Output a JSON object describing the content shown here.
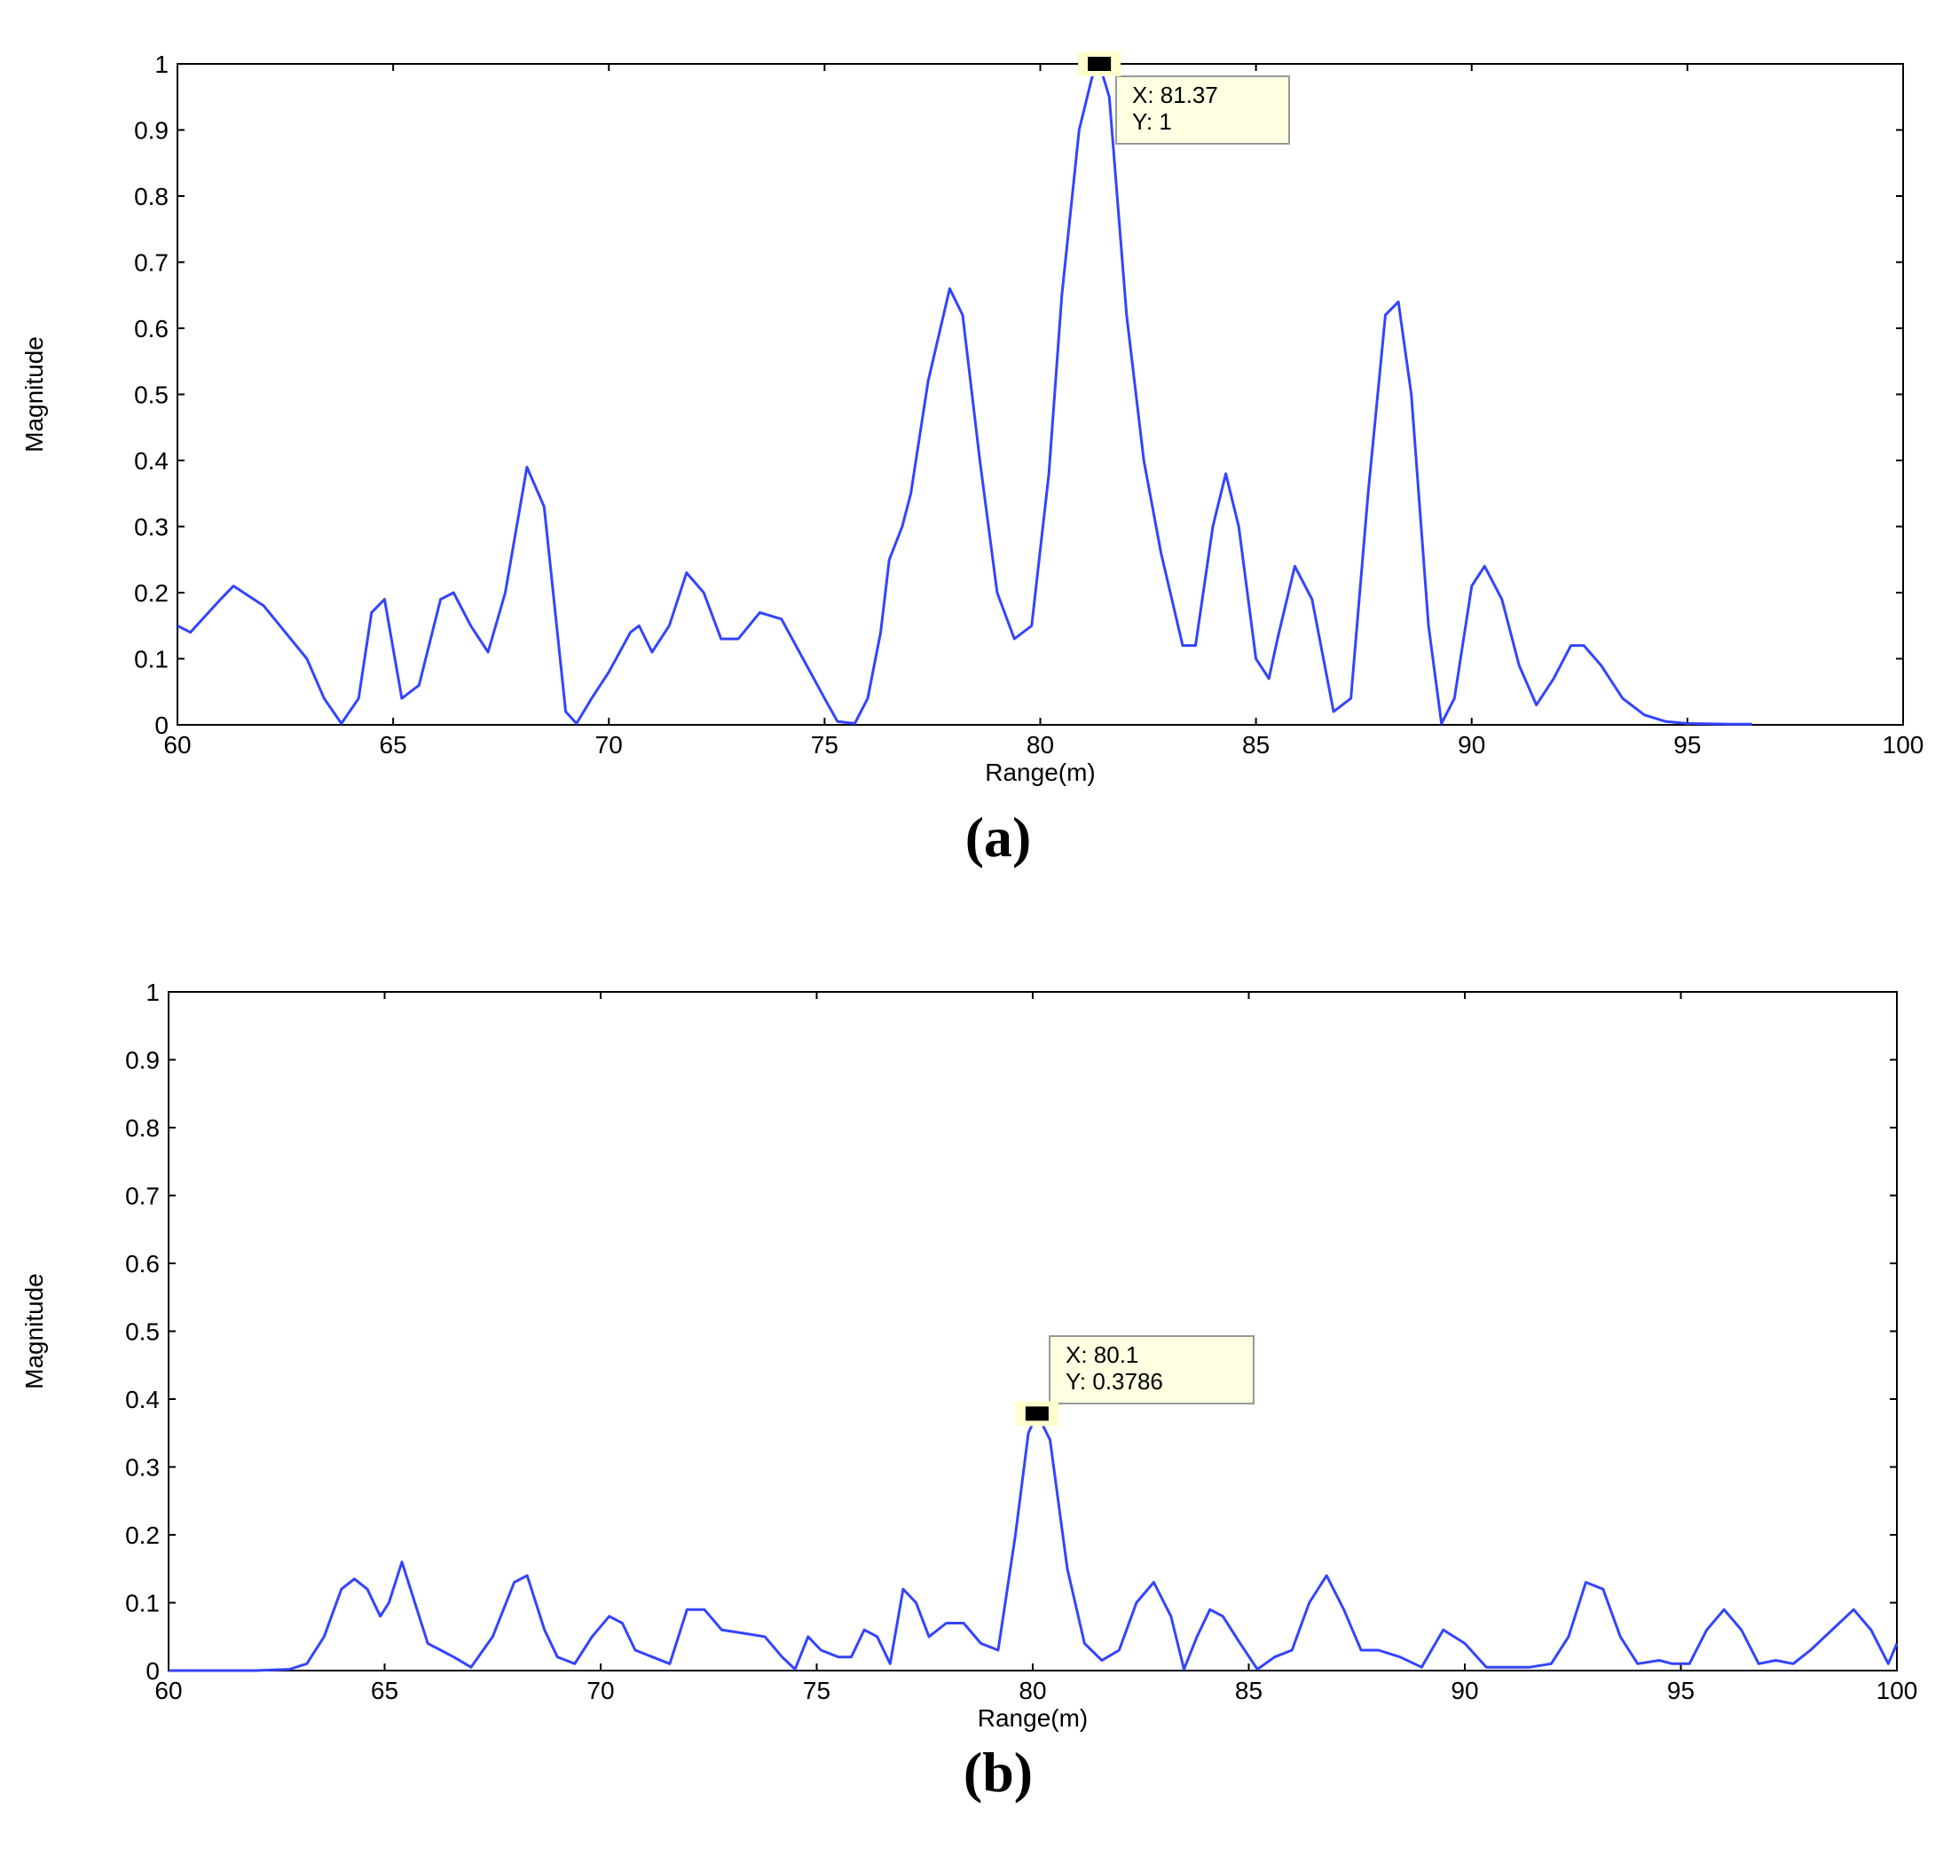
{
  "chart_data": [
    {
      "type": "line",
      "panel_label": "(a)",
      "xlabel": "Range(m)",
      "ylabel": "Magnitude",
      "xlim": [
        60,
        100
      ],
      "ylim": [
        0,
        1
      ],
      "xticks": [
        60,
        65,
        70,
        75,
        80,
        85,
        90,
        95,
        100
      ],
      "yticks": [
        0,
        0.1,
        0.2,
        0.3,
        0.4,
        0.5,
        0.6,
        0.7,
        0.8,
        0.9,
        1
      ],
      "grid": false,
      "line_color": "#3344ff",
      "datatip": {
        "x_text": "X: 81.37",
        "y_text": "Y: 1",
        "x": 81.37,
        "y": 1
      },
      "series": [
        {
          "x": [
            60,
            60.3,
            61,
            61.3,
            62,
            62.5,
            63,
            63.4,
            63.8,
            64.2,
            64.5,
            64.8,
            65.2,
            65.6,
            66.1,
            66.4,
            66.8,
            67.2,
            67.6,
            68.1,
            68.5,
            69,
            69.25,
            69.6,
            70,
            70.5,
            70.7,
            71,
            71.4,
            71.8,
            72.2,
            72.6,
            73,
            73.5,
            74,
            74.5,
            75,
            75.3,
            75.7,
            76,
            76.3,
            76.5,
            76.8,
            77,
            77.4,
            77.9,
            78.2,
            78.6,
            79,
            79.4,
            79.8,
            80.2,
            80.5,
            80.9,
            81.2,
            81.37,
            81.6,
            82,
            82.4,
            82.8,
            83.3,
            83.6,
            84,
            84.3,
            84.6,
            85,
            85.3,
            85.5,
            85.9,
            86.3,
            86.8,
            87.2,
            87.6,
            88,
            88.3,
            88.6,
            89,
            89.3,
            89.6,
            90,
            90.3,
            90.7,
            91.1,
            91.5,
            91.9,
            92.3,
            92.6,
            93,
            93.5,
            94,
            94.5,
            95,
            96,
            96.5
          ],
          "y": [
            0.15,
            0.14,
            0.19,
            0.21,
            0.18,
            0.14,
            0.1,
            0.04,
            0.002,
            0.04,
            0.17,
            0.19,
            0.04,
            0.06,
            0.19,
            0.2,
            0.15,
            0.11,
            0.2,
            0.39,
            0.33,
            0.02,
            0.002,
            0.04,
            0.08,
            0.14,
            0.15,
            0.11,
            0.15,
            0.23,
            0.2,
            0.13,
            0.13,
            0.17,
            0.16,
            0.1,
            0.04,
            0.005,
            0.002,
            0.04,
            0.14,
            0.25,
            0.3,
            0.35,
            0.52,
            0.66,
            0.62,
            0.4,
            0.2,
            0.13,
            0.15,
            0.38,
            0.65,
            0.9,
            0.98,
            1.0,
            0.95,
            0.62,
            0.4,
            0.26,
            0.12,
            0.12,
            0.3,
            0.38,
            0.3,
            0.1,
            0.07,
            0.13,
            0.24,
            0.19,
            0.02,
            0.04,
            0.35,
            0.62,
            0.64,
            0.5,
            0.15,
            0.002,
            0.04,
            0.21,
            0.24,
            0.19,
            0.09,
            0.03,
            0.07,
            0.12,
            0.12,
            0.09,
            0.04,
            0.015,
            0.005,
            0.002,
            0.001,
            0.001
          ]
        }
      ]
    },
    {
      "type": "line",
      "panel_label": "(b)",
      "xlabel": "Range(m)",
      "ylabel": "Magnitude",
      "xlim": [
        60,
        100
      ],
      "ylim": [
        0,
        1
      ],
      "xticks": [
        60,
        65,
        70,
        75,
        80,
        85,
        90,
        95,
        100
      ],
      "yticks": [
        0,
        0.1,
        0.2,
        0.3,
        0.4,
        0.5,
        0.6,
        0.7,
        0.8,
        0.9,
        1
      ],
      "grid": false,
      "line_color": "#3344ff",
      "datatip": {
        "x_text": "X: 80.1",
        "y_text": "Y: 0.3786",
        "x": 80.1,
        "y": 0.3786
      },
      "series": [
        {
          "x": [
            60,
            62,
            62.8,
            63.2,
            63.6,
            64,
            64.3,
            64.6,
            64.9,
            65.1,
            65.4,
            65.7,
            66,
            66.3,
            66.6,
            67,
            67.5,
            68,
            68.3,
            68.7,
            69,
            69.4,
            69.8,
            70.2,
            70.5,
            70.8,
            71.2,
            71.6,
            72,
            72.4,
            72.8,
            73.3,
            73.8,
            74.2,
            74.5,
            74.8,
            75.1,
            75.5,
            75.8,
            76.1,
            76.4,
            76.7,
            77,
            77.3,
            77.6,
            78,
            78.4,
            78.8,
            79.2,
            79.6,
            79.9,
            80.1,
            80.4,
            80.8,
            81.2,
            81.6,
            82,
            82.4,
            82.8,
            83.2,
            83.5,
            83.8,
            84.1,
            84.4,
            84.8,
            85.2,
            85.6,
            86,
            86.4,
            86.8,
            87.2,
            87.6,
            88,
            88.5,
            89,
            89.5,
            90,
            90.5,
            91,
            91.5,
            92,
            92.4,
            92.8,
            93.2,
            93.6,
            94,
            94.5,
            94.8,
            95.2,
            95.6,
            96,
            96.4,
            96.8,
            97.2,
            97.6,
            98,
            98.5,
            99,
            99.4,
            99.8,
            100
          ],
          "y": [
            0,
            0,
            0.002,
            0.01,
            0.05,
            0.12,
            0.135,
            0.12,
            0.08,
            0.1,
            0.16,
            0.1,
            0.04,
            0.03,
            0.02,
            0.005,
            0.05,
            0.13,
            0.14,
            0.06,
            0.02,
            0.01,
            0.05,
            0.08,
            0.07,
            0.03,
            0.02,
            0.01,
            0.09,
            0.09,
            0.06,
            0.055,
            0.05,
            0.02,
            0.002,
            0.05,
            0.03,
            0.02,
            0.02,
            0.06,
            0.05,
            0.01,
            0.12,
            0.1,
            0.05,
            0.07,
            0.07,
            0.04,
            0.03,
            0.2,
            0.35,
            0.3786,
            0.34,
            0.15,
            0.04,
            0.015,
            0.03,
            0.1,
            0.13,
            0.08,
            0.002,
            0.05,
            0.09,
            0.08,
            0.04,
            0.002,
            0.02,
            0.03,
            0.1,
            0.14,
            0.09,
            0.03,
            0.03,
            0.02,
            0.005,
            0.06,
            0.04,
            0.005,
            0.005,
            0.005,
            0.01,
            0.05,
            0.13,
            0.12,
            0.05,
            0.01,
            0.015,
            0.01,
            0.01,
            0.06,
            0.09,
            0.06,
            0.01,
            0.015,
            0.01,
            0.03,
            0.06,
            0.09,
            0.06,
            0.01,
            0.04
          ]
        }
      ]
    }
  ]
}
